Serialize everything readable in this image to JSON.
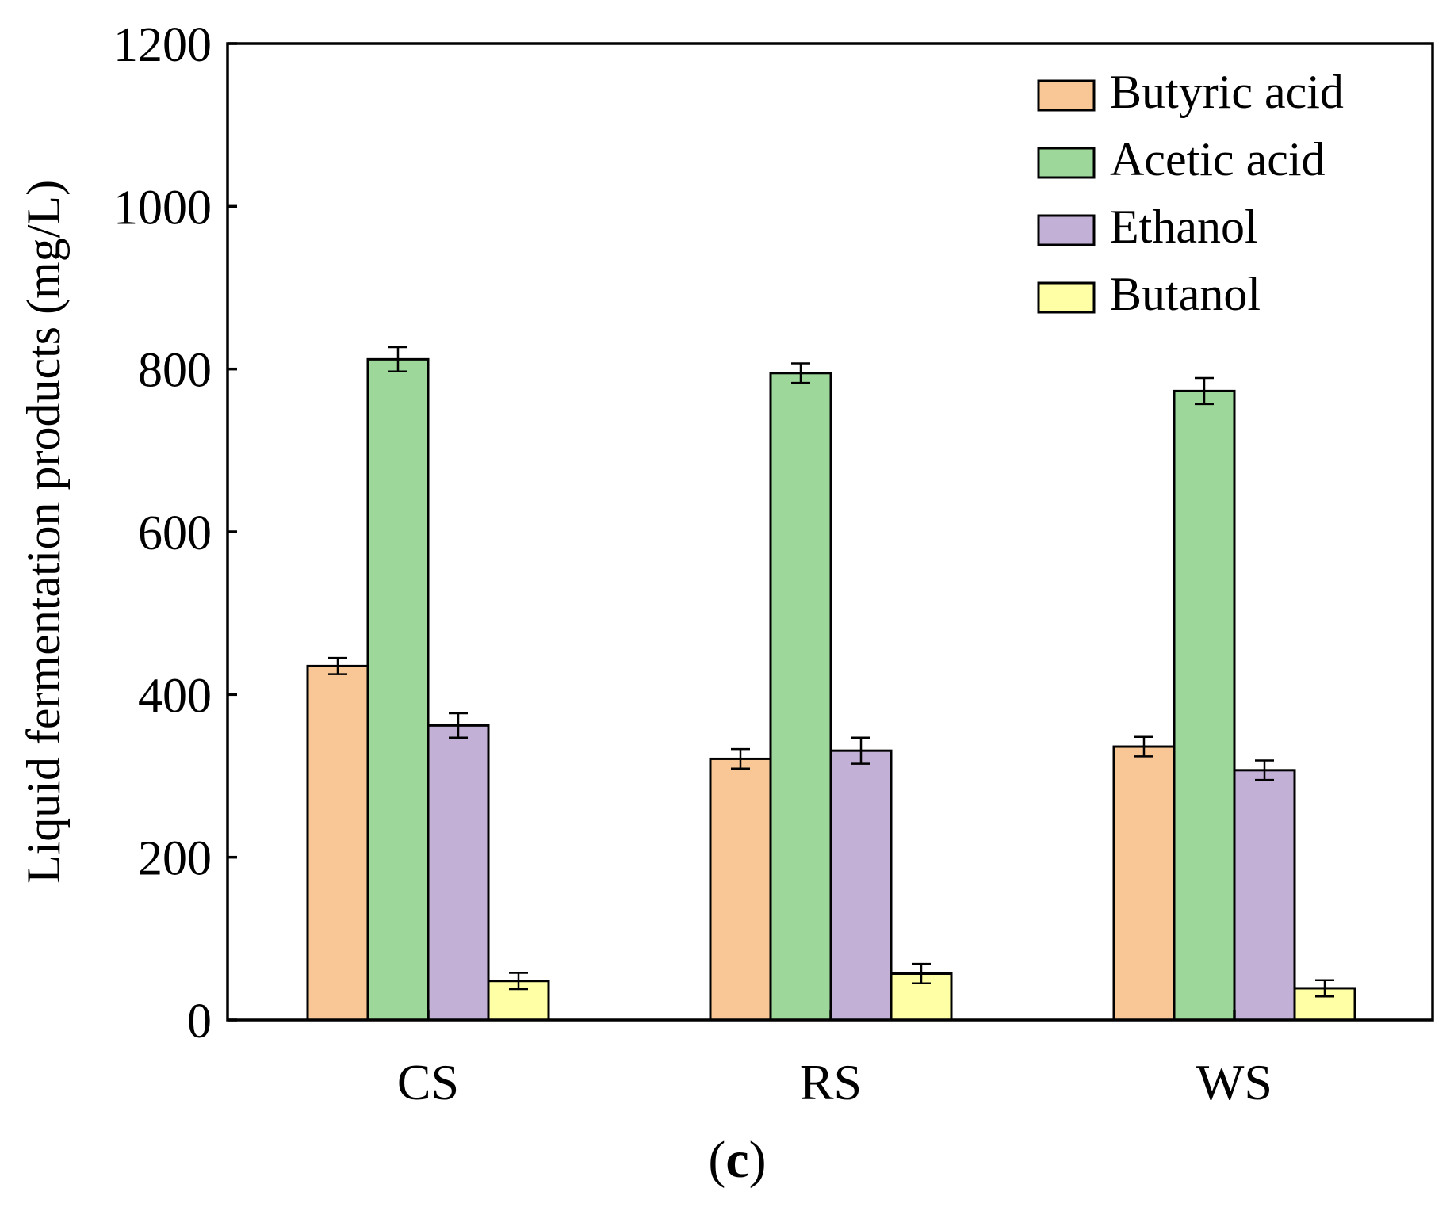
{
  "chart_data": {
    "type": "bar",
    "title": "",
    "caption": {
      "open": "(",
      "letter": "c",
      "close": ")"
    },
    "xlabel": "",
    "ylabel": "Liquid fermentation products (mg/L)",
    "ylim": [
      0,
      1200
    ],
    "yticks": [
      0,
      200,
      400,
      600,
      800,
      1000,
      1200
    ],
    "grid": false,
    "legend_position": "top-right",
    "categories": [
      "CS",
      "RS",
      "WS"
    ],
    "series": [
      {
        "name": "Butyric acid",
        "color": "#F9C796",
        "values": [
          435,
          321,
          336
        ],
        "errors": [
          10,
          12,
          12
        ]
      },
      {
        "name": "Acetic acid",
        "color": "#9DD79A",
        "values": [
          812,
          795,
          773
        ],
        "errors": [
          15,
          12,
          16
        ]
      },
      {
        "name": "Ethanol",
        "color": "#C2B0D6",
        "values": [
          362,
          331,
          307
        ],
        "errors": [
          15,
          16,
          12
        ]
      },
      {
        "name": "Butanol",
        "color": "#FFFFA6",
        "values": [
          48,
          57,
          39
        ],
        "errors": [
          10,
          12,
          10
        ]
      }
    ]
  }
}
